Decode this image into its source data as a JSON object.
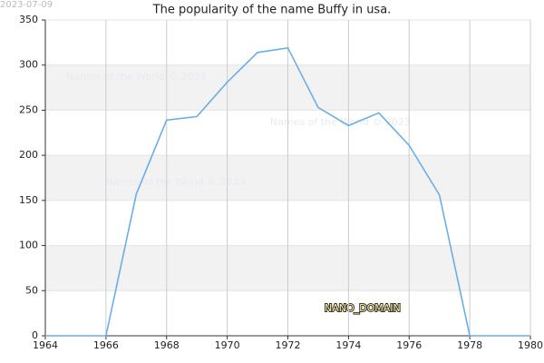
{
  "date": "2023-07-09",
  "watermarks": [
    "Names of the World © 2023",
    "Names of the World © 2023",
    "Names of the World © 2023"
  ],
  "domain": "NANO_DOMAIN",
  "chart_data": {
    "type": "line",
    "title": "The popularity of the name Buffy in usa.",
    "x": [
      1964,
      1965,
      1966,
      1967,
      1968,
      1969,
      1970,
      1971,
      1972,
      1973,
      1974,
      1975,
      1976,
      1977,
      1978,
      1979,
      1980
    ],
    "series": [
      {
        "name": "Buffy",
        "color": "#6aaee8",
        "values": [
          0,
          0,
          0,
          157,
          239,
          243,
          281,
          314,
          319,
          253,
          233,
          247,
          211,
          156,
          0,
          0,
          0
        ]
      }
    ],
    "xlim": [
      1964,
      1980
    ],
    "xticks": [
      1964,
      1966,
      1968,
      1970,
      1972,
      1974,
      1976,
      1978,
      1980
    ],
    "ylim": [
      0,
      350
    ],
    "yticks": [
      0,
      50,
      100,
      150,
      200,
      250,
      300,
      350
    ],
    "grid": true
  }
}
